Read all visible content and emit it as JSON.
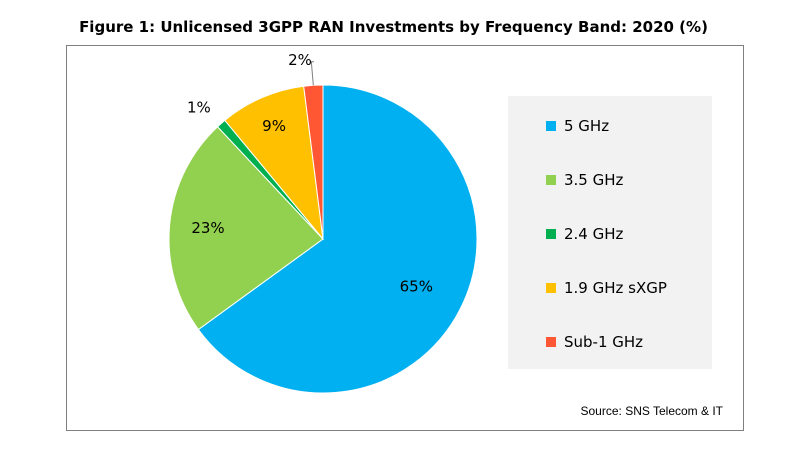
{
  "title": "Figure 1: Unlicensed 3GPP RAN Investments by Frequency Band: 2020 (%)",
  "source": "Source: SNS Telecom & IT",
  "chart_data": {
    "type": "pie",
    "title": "Figure 1: Unlicensed 3GPP RAN Investments by Frequency Band: 2020 (%)",
    "categories": [
      "5 GHz",
      "3.5 GHz",
      "2.4 GHz",
      "1.9 GHz sXGP",
      "Sub-1 GHz"
    ],
    "values": [
      65,
      23,
      1,
      9,
      2
    ],
    "data_labels": [
      "65%",
      "23%",
      "1%",
      "9%",
      "2%"
    ],
    "colors": [
      "#00b0f0",
      "#92d050",
      "#00b050",
      "#ffc000",
      "#ff5733"
    ],
    "legend_position": "right",
    "start": "12 o'clock",
    "direction": "clockwise"
  }
}
